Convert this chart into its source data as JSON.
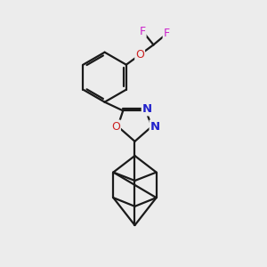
{
  "bg_color": "#ececec",
  "bond_color": "#1a1a1a",
  "N_color": "#2222cc",
  "O_color": "#cc2222",
  "F_color": "#cc22cc",
  "line_width": 1.6,
  "figsize": [
    3.0,
    3.0
  ],
  "dpi": 100,
  "xlim": [
    0,
    10
  ],
  "ylim": [
    0,
    10
  ]
}
